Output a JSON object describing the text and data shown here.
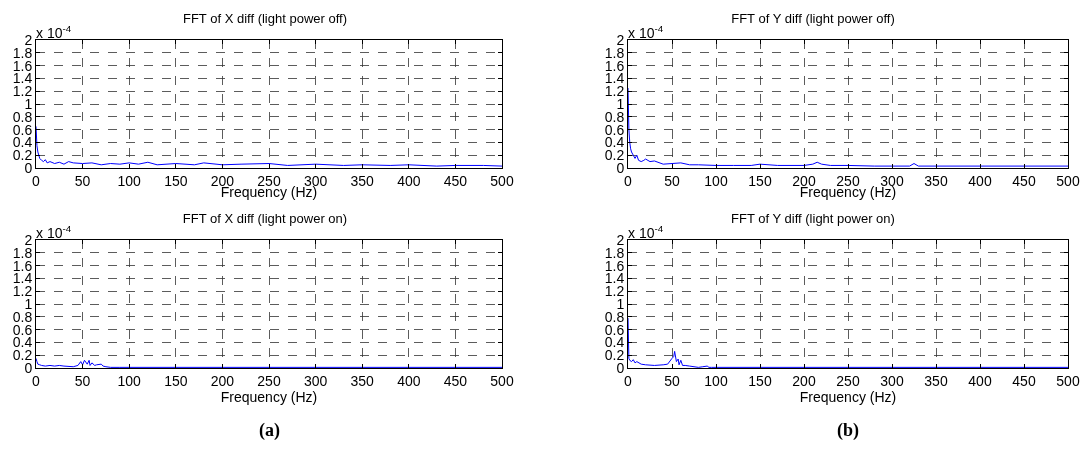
{
  "chart_data": [
    {
      "type": "line",
      "title": "FFT of X diff (light power off)",
      "xlabel": "Frequency (Hz)",
      "annotations": [
        "x 10$^{-4}$"
      ],
      "xlim": [
        0,
        500
      ],
      "xticks": [
        0,
        50,
        100,
        150,
        200,
        250,
        300,
        350,
        400,
        450,
        500
      ],
      "ylim": [
        0,
        2
      ],
      "yticks": [
        0,
        0.2,
        0.4,
        0.6,
        0.8,
        1,
        1.2,
        1.4,
        1.6,
        1.8,
        2
      ],
      "grid": true,
      "marker": "none",
      "line_style": "solid",
      "series": [
        {
          "color": "#0000ff",
          "x": [
            0,
            1,
            2,
            3,
            4,
            6,
            8,
            10,
            12,
            15,
            20,
            25,
            30,
            35,
            40,
            50,
            60,
            70,
            80,
            90,
            100,
            110,
            120,
            130,
            150,
            170,
            180,
            200,
            220,
            250,
            270,
            300,
            330,
            350,
            380,
            400,
            430,
            450,
            480,
            500
          ],
          "values": [
            0.65,
            0.35,
            0.25,
            0.2,
            0.15,
            0.12,
            0.1,
            0.13,
            0.08,
            0.1,
            0.07,
            0.09,
            0.06,
            0.1,
            0.08,
            0.07,
            0.08,
            0.05,
            0.07,
            0.06,
            0.08,
            0.06,
            0.09,
            0.05,
            0.07,
            0.05,
            0.08,
            0.05,
            0.06,
            0.07,
            0.04,
            0.06,
            0.04,
            0.05,
            0.04,
            0.05,
            0.03,
            0.04,
            0.04,
            0.03
          ]
        }
      ]
    },
    {
      "type": "line",
      "title": "FFT of Y diff (light power off)",
      "xlabel": "Frequency (Hz)",
      "annotations": [
        "x 10$^{-4}$"
      ],
      "xlim": [
        0,
        500
      ],
      "xticks": [
        0,
        50,
        100,
        150,
        200,
        250,
        300,
        350,
        400,
        450,
        500
      ],
      "ylim": [
        0,
        2
      ],
      "yticks": [
        0,
        0.2,
        0.4,
        0.6,
        0.8,
        1,
        1.2,
        1.4,
        1.6,
        1.8,
        2
      ],
      "grid": true,
      "marker": "none",
      "line_style": "solid",
      "series": [
        {
          "color": "#0000ff",
          "x": [
            0,
            1,
            2,
            3,
            4,
            6,
            8,
            10,
            12,
            15,
            18,
            20,
            25,
            30,
            40,
            50,
            60,
            70,
            80,
            100,
            120,
            140,
            150,
            170,
            200,
            210,
            215,
            220,
            230,
            250,
            280,
            300,
            320,
            325,
            330,
            350,
            400,
            450,
            500
          ],
          "values": [
            1.25,
            0.6,
            0.4,
            0.3,
            0.25,
            0.2,
            0.15,
            0.2,
            0.12,
            0.1,
            0.12,
            0.14,
            0.1,
            0.11,
            0.06,
            0.07,
            0.08,
            0.05,
            0.05,
            0.04,
            0.04,
            0.04,
            0.06,
            0.04,
            0.04,
            0.06,
            0.09,
            0.06,
            0.04,
            0.04,
            0.03,
            0.03,
            0.03,
            0.07,
            0.03,
            0.03,
            0.03,
            0.03,
            0.03
          ]
        }
      ]
    },
    {
      "type": "line",
      "title": "FFT of X diff (light power on)",
      "xlabel": "Frequency (Hz)",
      "annotations": [
        "x 10$^{-4}$",
        "(a)"
      ],
      "xlim": [
        0,
        500
      ],
      "xticks": [
        0,
        50,
        100,
        150,
        200,
        250,
        300,
        350,
        400,
        450,
        500
      ],
      "ylim": [
        0,
        2
      ],
      "yticks": [
        0,
        0.2,
        0.4,
        0.6,
        0.8,
        1,
        1.2,
        1.4,
        1.6,
        1.8,
        2
      ],
      "grid": true,
      "marker": "none",
      "line_style": "solid",
      "series": [
        {
          "color": "#0000ff",
          "x": [
            0,
            1,
            2,
            4,
            6,
            10,
            15,
            20,
            25,
            30,
            40,
            45,
            48,
            50,
            52,
            55,
            57,
            58,
            60,
            63,
            65,
            70,
            72,
            75,
            80,
            90,
            100,
            150,
            200,
            300,
            400,
            500
          ],
          "values": [
            0.15,
            0.1,
            0.06,
            0.05,
            0.04,
            0.03,
            0.04,
            0.03,
            0.04,
            0.03,
            0.02,
            0.04,
            0.1,
            0.05,
            0.12,
            0.06,
            0.12,
            0.04,
            0.08,
            0.04,
            0.05,
            0.06,
            0.03,
            0.02,
            0.01,
            0.01,
            0.01,
            0.01,
            0.01,
            0.01,
            0.01,
            0.01
          ]
        }
      ]
    },
    {
      "type": "line",
      "title": "FFT of Y diff (light power on)",
      "xlabel": "Frequency (Hz)",
      "annotations": [
        "x 10$^{-4}$",
        "(b)"
      ],
      "xlim": [
        0,
        500
      ],
      "xticks": [
        0,
        50,
        100,
        150,
        200,
        250,
        300,
        350,
        400,
        450,
        500
      ],
      "ylim": [
        0,
        2
      ],
      "yticks": [
        0,
        0.2,
        0.4,
        0.6,
        0.8,
        1,
        1.2,
        1.4,
        1.6,
        1.8,
        2
      ],
      "grid": true,
      "marker": "none",
      "line_style": "solid",
      "series": [
        {
          "color": "#0000ff",
          "x": [
            0,
            1,
            2,
            4,
            6,
            8,
            10,
            15,
            20,
            30,
            40,
            45,
            50,
            52,
            53,
            55,
            57,
            58,
            60,
            62,
            65,
            70,
            75,
            80,
            85,
            90,
            92,
            95,
            100,
            200,
            300,
            400,
            500
          ],
          "values": [
            0.78,
            0.15,
            0.12,
            0.1,
            0.13,
            0.08,
            0.1,
            0.06,
            0.05,
            0.04,
            0.05,
            0.06,
            0.15,
            0.18,
            0.26,
            0.1,
            0.14,
            0.05,
            0.12,
            0.04,
            0.04,
            0.03,
            0.02,
            0.01,
            0.02,
            0.03,
            0.01,
            0.01,
            0.01,
            0.01,
            0.01,
            0.01,
            0.01
          ]
        }
      ]
    }
  ]
}
